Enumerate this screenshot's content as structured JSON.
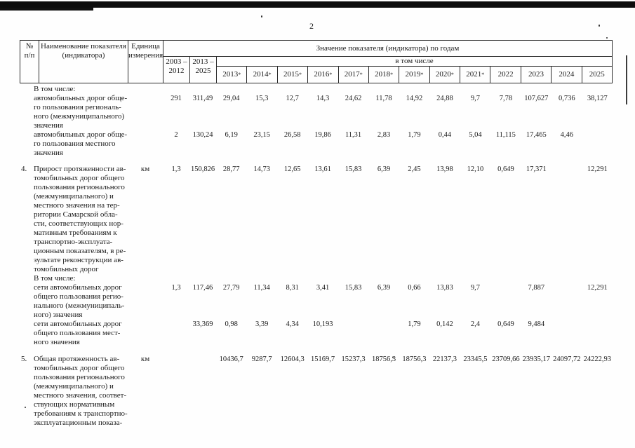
{
  "page": {
    "number": "2"
  },
  "colors": {
    "ink": "#1b1b1b",
    "paper": "#fefefe",
    "border": "#2a2a2a"
  },
  "table": {
    "header": {
      "num": "№\nп/п",
      "name": "Наименование показателя\n(индикатора)",
      "unit": "Единица\nизмерения",
      "values_title": "Значение показателя (индикатора) по годам",
      "range1": "2003 –\n2012",
      "range2": "2013 –\n2025",
      "including": "в том числе",
      "years": [
        {
          "y": "2013",
          "s": "*"
        },
        {
          "y": "2014",
          "s": "*"
        },
        {
          "y": "2015",
          "s": "*"
        },
        {
          "y": "2016",
          "s": "*"
        },
        {
          "y": "2017",
          "s": "*"
        },
        {
          "y": "2018",
          "s": "*"
        },
        {
          "y": "2019",
          "s": "*"
        },
        {
          "y": "2020",
          "s": "*"
        },
        {
          "y": "2021",
          "s": "*"
        },
        {
          "y": "2022",
          "s": ""
        },
        {
          "y": "2023",
          "s": ""
        },
        {
          "y": "2024",
          "s": ""
        },
        {
          "y": "2025",
          "s": ""
        }
      ]
    },
    "rows": [
      {
        "type": "label",
        "name": "В том числе:"
      },
      {
        "num": "",
        "name": "автомобильных дорог обще-\nго пользования региональ-\nного (межмуниципального)\nзначения",
        "unit": "",
        "values": [
          "291",
          "311,49",
          "29,04",
          "15,3",
          "12,7",
          "14,3",
          "24,62",
          "11,78",
          "14,92",
          "24,88",
          "9,7",
          "7,78",
          "107,627",
          "0,736",
          "38,127"
        ]
      },
      {
        "num": "",
        "name": "автомобильных дорог обще-\nго пользования местного\nзначения",
        "unit": "",
        "values": [
          "2",
          "130,24",
          "6,19",
          "23,15",
          "26,58",
          "19,86",
          "11,31",
          "2,83",
          "1,79",
          "0,44",
          "5,04",
          "11,115",
          "17,465",
          "4,46",
          ""
        ]
      },
      {
        "num": "4.",
        "name": "Прирост протяженности ав-\nтомобильных дорог общего\nпользования регионального\n(межмуниципального) и\nместного значения на тер-\nритории Самарской обла-\nсти, соответствующих нор-\nмативным требованиям к\nтранспортно-эксплуата-\nционным показателям, в ре-\nзультате реконструкции ав-\nтомобильных дорог",
        "unit": "км",
        "values": [
          "1,3",
          "150,826",
          "28,77",
          "14,73",
          "12,65",
          "13,61",
          "15,83",
          "6,39",
          "2,45",
          "13,98",
          "12,10",
          "0,649",
          "17,371",
          "",
          "12,291"
        ]
      },
      {
        "type": "label",
        "name": "В том числе:"
      },
      {
        "num": "",
        "name": "сети автомобильных дорог\nобщего пользования регио-\nнального (межмуниципаль-\nного) значения",
        "unit": "",
        "values": [
          "1,3",
          "117,46",
          "27,79",
          "11,34",
          "8,31",
          "3,41",
          "15,83",
          "6,39",
          "0,66",
          "13,83",
          "9,7",
          "",
          "7,887",
          "",
          "12,291"
        ]
      },
      {
        "num": "",
        "name": "сети автомобильных дорог\nобщего пользования мест-\nного значения",
        "unit": "",
        "values": [
          "",
          "33,369",
          "0,98",
          "3,39",
          "4,34",
          "10,193",
          "",
          "",
          "1,79",
          "0,142",
          "2,4",
          "0,649",
          "9,484",
          "",
          ""
        ]
      },
      {
        "num": "5.",
        "name": "Общая протяженность ав-\nтомобильных дорог общего\nпользования регионального\n(межмуниципального) и\nместного значения, соответ-\nствующих нормативным\nтребованиям к транспортно-\nэксплуатационным показа-",
        "unit": "км",
        "values": [
          "",
          "",
          "10436,7",
          "9287,7",
          "12604,3",
          "15169,7",
          "15237,3",
          "18756,3",
          "18756,3",
          "22137,3",
          "23345,5",
          "23709,66",
          "23935,17",
          "24097,72",
          "24222,93"
        ]
      }
    ]
  }
}
